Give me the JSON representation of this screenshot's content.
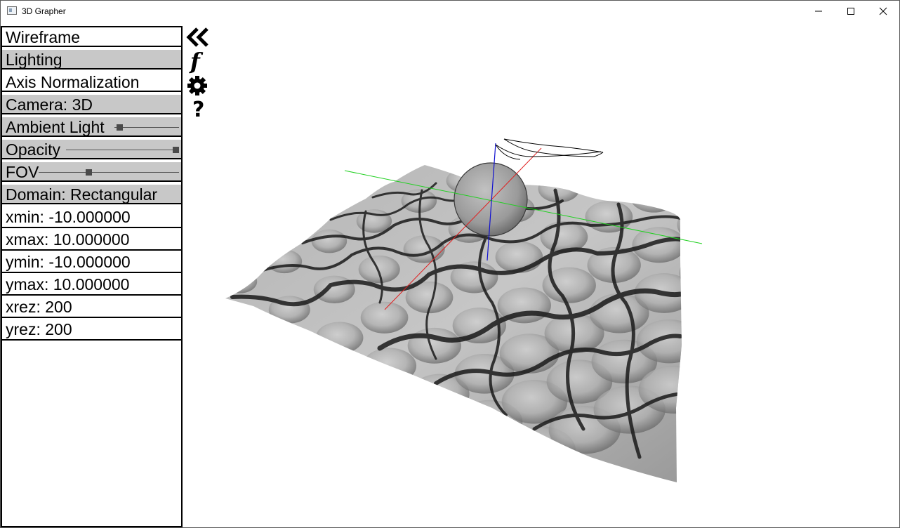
{
  "window": {
    "title": "3D Grapher"
  },
  "panel": {
    "wireframe": "Wireframe",
    "lighting": "Lighting",
    "axis_normalization": "Axis Normalization",
    "camera": "Camera: 3D",
    "ambient_light": {
      "label": "Ambient Light",
      "value": 0.04
    },
    "opacity": {
      "label": "Opacity",
      "value": 1.0
    },
    "fov": {
      "label": "FOV",
      "value": 0.35
    },
    "domain": "Domain: Rectangular",
    "xmin": "xmin: -10.000000",
    "xmax": "xmax: 10.000000",
    "ymin": "ymin: -10.000000",
    "ymax": "ymax: 10.000000",
    "xrez": "xrez: 200",
    "yrez": "yrez: 200"
  },
  "toolbar": {
    "collapse_icon": "double-chevron-left-icon",
    "function_icon": "function-icon",
    "function_glyph": "f",
    "settings_icon": "gear-icon",
    "help_icon": "question-icon",
    "help_glyph": "?"
  },
  "colors": {
    "x_axis": "#e02020",
    "y_axis": "#20d020",
    "z_axis": "#1010d0",
    "active_row": "#c8c8c8"
  }
}
